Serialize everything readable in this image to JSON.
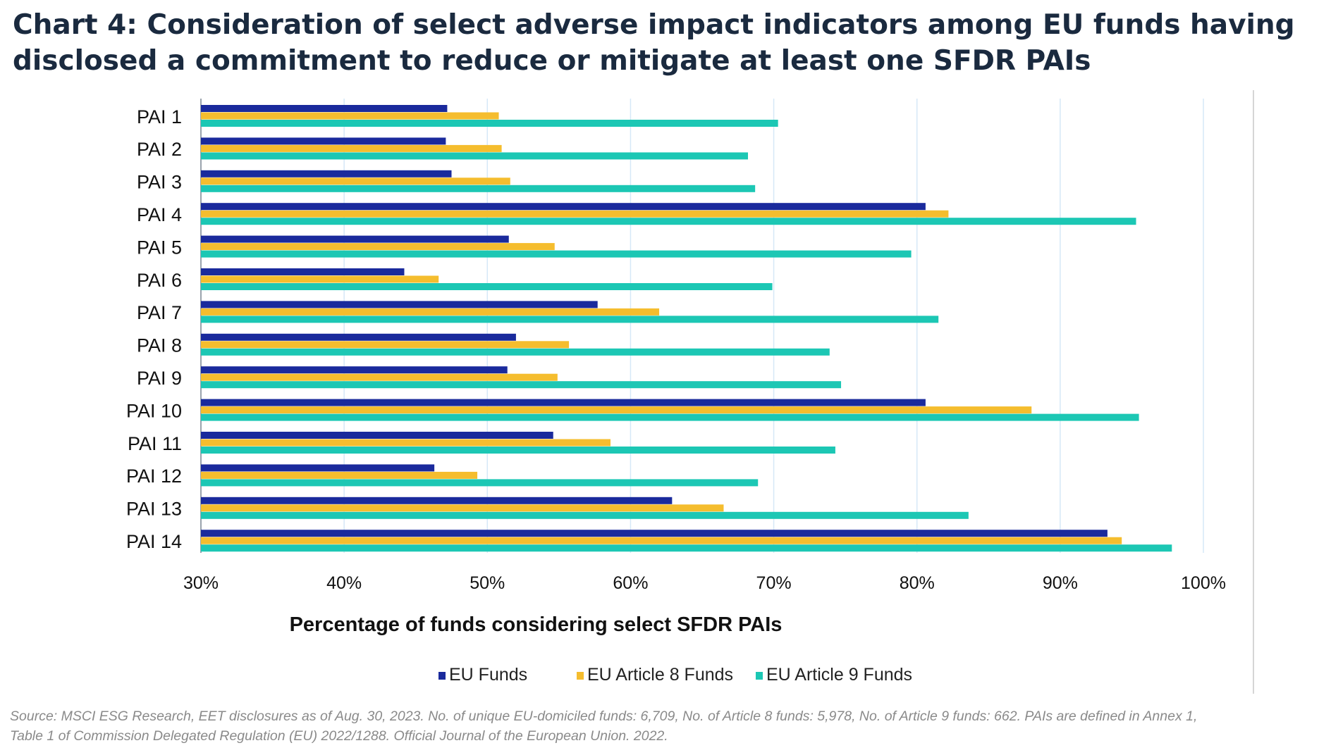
{
  "title": {
    "line1": "Chart 4: Consideration of select adverse impact indicators among EU funds having",
    "line2": "disclosed a commitment to reduce or mitigate at least one SFDR PAIs"
  },
  "chart_data": {
    "type": "bar",
    "orientation": "horizontal",
    "title": "Chart 4: Consideration of select adverse impact indicators among EU funds having disclosed a commitment to reduce or mitigate at least one SFDR PAIs",
    "xlabel": "Percentage of funds considering select SFDR PAIs",
    "ylabel": "",
    "xlim": [
      30,
      100
    ],
    "x_ticks": [
      30,
      40,
      50,
      60,
      70,
      80,
      90,
      100
    ],
    "tick_suffix": "%",
    "grid": true,
    "legend_position": "bottom",
    "categories": [
      "PAI 1",
      "PAI 2",
      "PAI 3",
      "PAI 4",
      "PAI 5",
      "PAI 6",
      "PAI 7",
      "PAI 8",
      "PAI 9",
      "PAI 10",
      "PAI 11",
      "PAI 12",
      "PAI 13",
      "PAI 14"
    ],
    "series": [
      {
        "name": "EU Funds",
        "color": "#1a2a9c",
        "values": [
          47.2,
          47.1,
          47.5,
          80.6,
          51.5,
          44.2,
          57.7,
          52.0,
          51.4,
          80.6,
          54.6,
          46.3,
          62.9,
          93.3
        ]
      },
      {
        "name": "EU Article 8 Funds",
        "color": "#f5bd2e",
        "values": [
          50.8,
          51.0,
          51.6,
          82.2,
          54.7,
          46.6,
          62.0,
          55.7,
          54.9,
          88.0,
          58.6,
          49.3,
          66.5,
          94.3
        ]
      },
      {
        "name": "EU Article 9 Funds",
        "color": "#1cc7b4",
        "values": [
          70.3,
          68.2,
          68.7,
          95.3,
          79.6,
          69.9,
          81.5,
          73.9,
          74.7,
          95.5,
          74.3,
          68.9,
          83.6,
          97.8
        ]
      }
    ]
  },
  "source": {
    "line1": "Source: MSCI ESG Research, EET disclosures as of Aug. 30, 2023. No. of unique EU-domiciled funds: 6,709, No. of Article 8 funds: 5,978, No. of Article 9 funds: 662. PAIs are defined in Annex 1,",
    "line2": "Table 1 of Commission Delegated Regulation (EU) 2022/1288. Official Journal of the European Union. 2022."
  }
}
